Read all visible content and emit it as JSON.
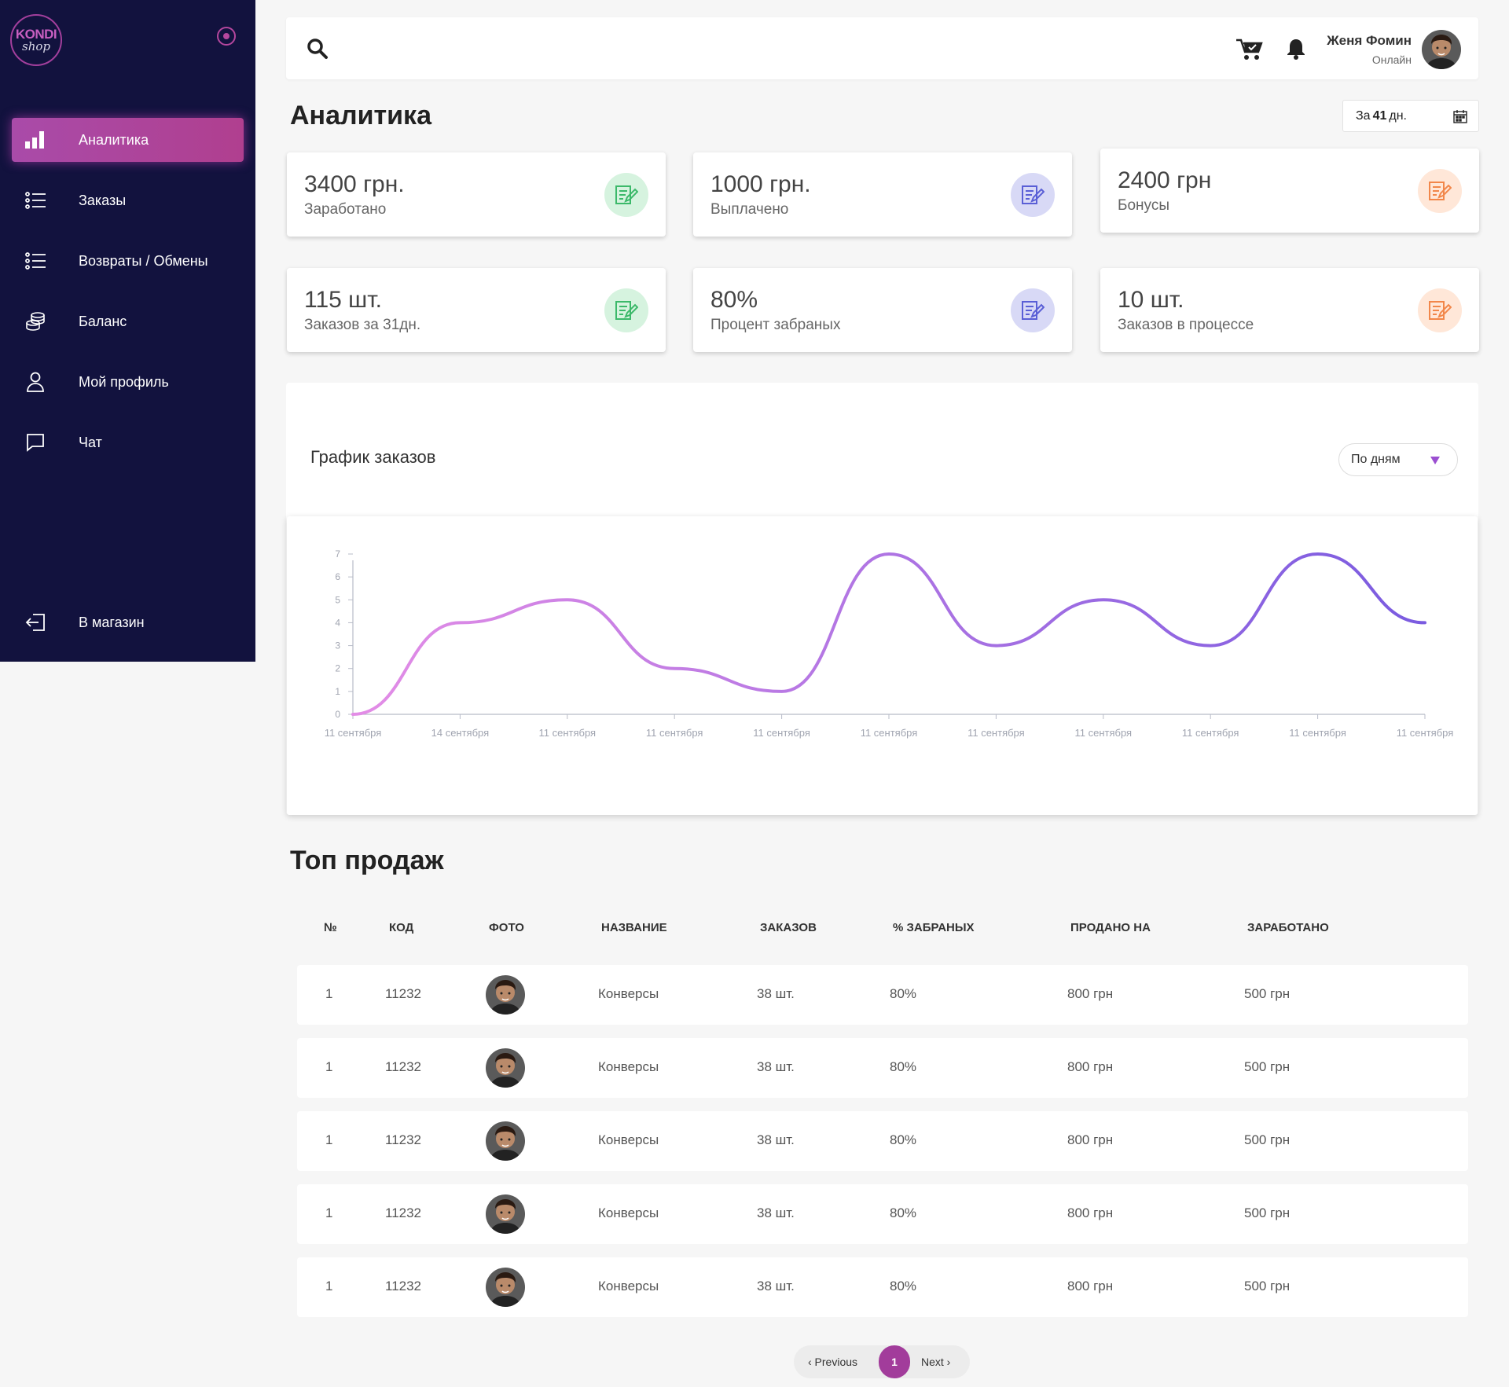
{
  "logo": {
    "line1": "KONDI",
    "line2": "shop"
  },
  "sidebar": {
    "items": [
      {
        "label": "Аналитика",
        "icon": "bar-chart-icon",
        "active": true
      },
      {
        "label": "Заказы",
        "icon": "list-icon"
      },
      {
        "label": "Возвраты / Обмены",
        "icon": "list-icon"
      },
      {
        "label": "Баланс",
        "icon": "coins-icon"
      },
      {
        "label": "Мой профиль",
        "icon": "user-icon"
      },
      {
        "label": "Чат",
        "icon": "chat-icon"
      }
    ],
    "bottom": {
      "label": "В магазин",
      "icon": "exit-icon"
    }
  },
  "header": {
    "user_name": "Женя Фомин",
    "user_status": "Онлайн"
  },
  "page": {
    "title": "Аналитика",
    "date_range": {
      "prefix": "За",
      "days": "41",
      "suffix": "дн."
    }
  },
  "stats": [
    {
      "value": "3400 грн.",
      "label": "Заработано",
      "color": "#3cb96a"
    },
    {
      "value": "1000 грн.",
      "label": "Выплачено",
      "color": "#5a5fd6"
    },
    {
      "value": "2400 грн",
      "label": "Бонусы",
      "color": "#f2874a"
    },
    {
      "value": "115 шт.",
      "label": "Заказов за 31дн.",
      "color": "#3cb96a"
    },
    {
      "value": "80%",
      "label": "Процент забраных",
      "color": "#5a5fd6"
    },
    {
      "value": "10 шт.",
      "label": "Заказов в процессе",
      "color": "#f2874a"
    }
  ],
  "chart_panel": {
    "title": "График заказов",
    "period_select": "По дням"
  },
  "chart_data": {
    "type": "line",
    "x": [
      "11 сентября",
      "14 сентября",
      "11 сентября",
      "11 сентября",
      "11 сентября",
      "11 сентября",
      "11 сентября",
      "11 сентября",
      "11 сентября",
      "11 сентября",
      "11 сентября"
    ],
    "values": [
      0,
      4,
      5,
      2,
      1,
      7,
      3,
      5,
      3,
      7,
      4
    ],
    "ylim": [
      0,
      7
    ],
    "yticks": [
      0,
      1,
      2,
      3,
      4,
      5,
      6,
      7
    ],
    "gradient": [
      "#e38de6",
      "#7a5be0"
    ],
    "grid": false,
    "title": "",
    "xlabel": "",
    "ylabel": ""
  },
  "sales": {
    "title": "Топ продаж",
    "columns": [
      "№",
      "КОД",
      "ФОТО",
      "НАЗВАНИЕ",
      "ЗАКАЗОВ",
      "% ЗАБРАНЫХ",
      "ПРОДАНО НА",
      "ЗАРАБОТАНО"
    ],
    "rows": [
      {
        "num": "1",
        "code": "11232",
        "name": "Конверсы",
        "orders": "38 шт.",
        "percent": "80%",
        "sold": "800 грн",
        "earned": "500 грн"
      },
      {
        "num": "1",
        "code": "11232",
        "name": "Конверсы",
        "orders": "38 шт.",
        "percent": "80%",
        "sold": "800 грн",
        "earned": "500 грн"
      },
      {
        "num": "1",
        "code": "11232",
        "name": "Конверсы",
        "orders": "38 шт.",
        "percent": "80%",
        "sold": "800 грн",
        "earned": "500 грн"
      },
      {
        "num": "1",
        "code": "11232",
        "name": "Конверсы",
        "orders": "38 шт.",
        "percent": "80%",
        "sold": "800 грн",
        "earned": "500 грн"
      },
      {
        "num": "1",
        "code": "11232",
        "name": "Конверсы",
        "orders": "38 шт.",
        "percent": "80%",
        "sold": "800 грн",
        "earned": "500 грн"
      }
    ]
  },
  "pagination": {
    "prev": "‹ Previous",
    "current": "1",
    "next": "Next ›"
  }
}
